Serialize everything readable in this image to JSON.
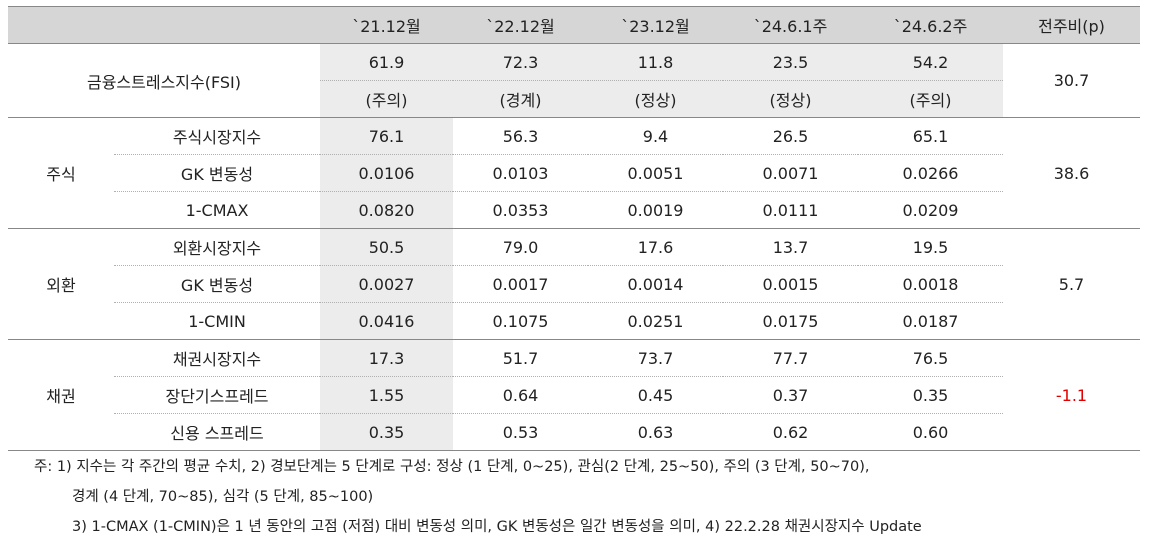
{
  "header": {
    "blank": "",
    "periods": [
      "`21.12월",
      "`22.12월",
      "`23.12월",
      "`24.6.1주",
      "`24.6.2주"
    ],
    "change": "전주비(p)"
  },
  "fsi": {
    "label": "금융스트레스지수(FSI)",
    "values": [
      "61.9",
      "72.3",
      "11.8",
      "23.5",
      "54.2"
    ],
    "stages": [
      "(주의)",
      "(경계)",
      "(정상)",
      "(정상)",
      "(주의)"
    ],
    "change": "30.7"
  },
  "stock": {
    "group": "주식",
    "change": "38.6",
    "rows": [
      {
        "label": "주식시장지수",
        "values": [
          "76.1",
          "56.3",
          "9.4",
          "26.5",
          "65.1"
        ]
      },
      {
        "label": "GK 변동성",
        "values": [
          "0.0106",
          "0.0103",
          "0.0051",
          "0.0071",
          "0.0266"
        ]
      },
      {
        "label": "1-CMAX",
        "values": [
          "0.0820",
          "0.0353",
          "0.0019",
          "0.0111",
          "0.0209"
        ]
      }
    ]
  },
  "fx": {
    "group": "외환",
    "change": "5.7",
    "rows": [
      {
        "label": "외환시장지수",
        "values": [
          "50.5",
          "79.0",
          "17.6",
          "13.7",
          "19.5"
        ]
      },
      {
        "label": "GK 변동성",
        "values": [
          "0.0027",
          "0.0017",
          "0.0014",
          "0.0015",
          "0.0018"
        ]
      },
      {
        "label": "1-CMIN",
        "values": [
          "0.0416",
          "0.1075",
          "0.0251",
          "0.0175",
          "0.0187"
        ]
      }
    ]
  },
  "bond": {
    "group": "채권",
    "change": "-1.1",
    "change_color": "#e00000",
    "rows": [
      {
        "label": "채권시장지수",
        "values": [
          "17.3",
          "51.7",
          "73.7",
          "77.7",
          "76.5"
        ]
      },
      {
        "label": "장단기스프레드",
        "values": [
          "1.55",
          "0.64",
          "0.45",
          "0.37",
          "0.35"
        ]
      },
      {
        "label": "신용 스프레드",
        "values": [
          "0.35",
          "0.53",
          "0.63",
          "0.62",
          "0.60"
        ]
      }
    ]
  },
  "notes": {
    "line1": "주: 1) 지수는 각 주간의 평균 수치, 2) 경보단계는 5 단계로 구성: 정상 (1 단계, 0~25), 관심(2 단계, 25~50), 주의 (3 단계, 50~70),",
    "line2": "경계 (4 단계, 70~85), 심각 (5 단계, 85~100)",
    "line3": "3) 1-CMAX (1-CMIN)은 1 년 동안의 고점 (저점) 대비 변동성 의미, GK 변동성은 일간 변동성을 의미, 4) 22.2.28 채권시장지수 Update"
  }
}
